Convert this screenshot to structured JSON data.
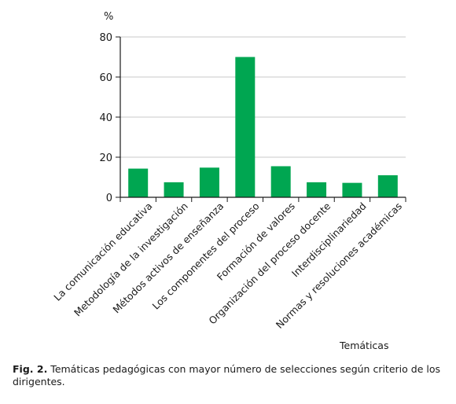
{
  "chart_data": {
    "type": "bar",
    "categories": [
      "La comunicación educativa",
      "Metodología de la investigación",
      "Métodos activos de enseñanza",
      "Los componentes del proceso",
      "Formación de valores",
      "Organización del proceso docente",
      "Interdisciplinariedad",
      "Normas y resoluciones académicas"
    ],
    "values": [
      14.3,
      7.5,
      14.8,
      70.0,
      15.5,
      7.5,
      7.2,
      11.0
    ],
    "y_unit": "%",
    "xlabel": "Temáticas",
    "ylim": [
      0,
      80
    ],
    "yticks": [
      0,
      20,
      40,
      60,
      80
    ],
    "bar_color": "#00a651",
    "grid": true
  },
  "caption": {
    "label": "Fig. 2.",
    "text": " Temáticas pedagógicas con mayor número de selecciones según criterio de los dirigentes."
  }
}
